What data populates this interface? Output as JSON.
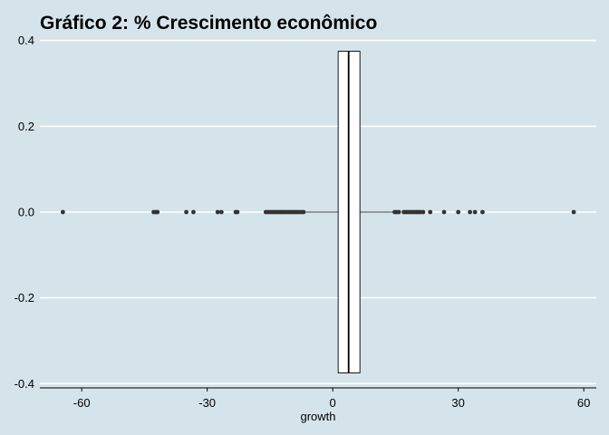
{
  "chart_data": {
    "type": "boxplot",
    "title": "Gráfico 2: % Crescimento econômico",
    "xlabel": "growth",
    "ylabel": "",
    "xlim": [
      -70,
      63
    ],
    "ylim": [
      -0.41,
      0.41
    ],
    "x_ticks": [
      -60,
      -30,
      0,
      30,
      60
    ],
    "y_ticks": [
      -0.4,
      -0.2,
      0.0,
      0.2,
      0.4
    ],
    "y_tick_labels": [
      "-0.4",
      "-0.2",
      "0.0",
      "0.2",
      "0.4"
    ],
    "grid": "horizontal",
    "box": {
      "q1": 1.3,
      "median": 3.8,
      "q3": 6.5,
      "whisker_low": -6.5,
      "whisker_high": 14.5,
      "half_width": 0.375
    },
    "outliers": [
      -64.5,
      -42.8,
      -42.3,
      -41.9,
      -35.0,
      -33.3,
      -27.5,
      -26.6,
      -23.2,
      -22.8,
      -16.0,
      -15.5,
      -15.0,
      -14.5,
      -14.0,
      -13.5,
      -13.0,
      -12.5,
      -12.0,
      -11.5,
      -11.0,
      -10.5,
      -10.0,
      -9.5,
      -9.0,
      -8.5,
      -8.0,
      -7.5,
      -7.0,
      14.8,
      15.3,
      15.8,
      17.0,
      17.5,
      18.0,
      18.5,
      19.0,
      19.5,
      20.0,
      20.5,
      21.0,
      21.6,
      23.3,
      26.6,
      30.0,
      32.8,
      34.0,
      35.8,
      57.6
    ],
    "colors": {
      "background": "#d5e4eb",
      "grid": "#ffffff",
      "box_fill": "#ffffff",
      "box_stroke": "#000000",
      "point": "#333333"
    }
  }
}
